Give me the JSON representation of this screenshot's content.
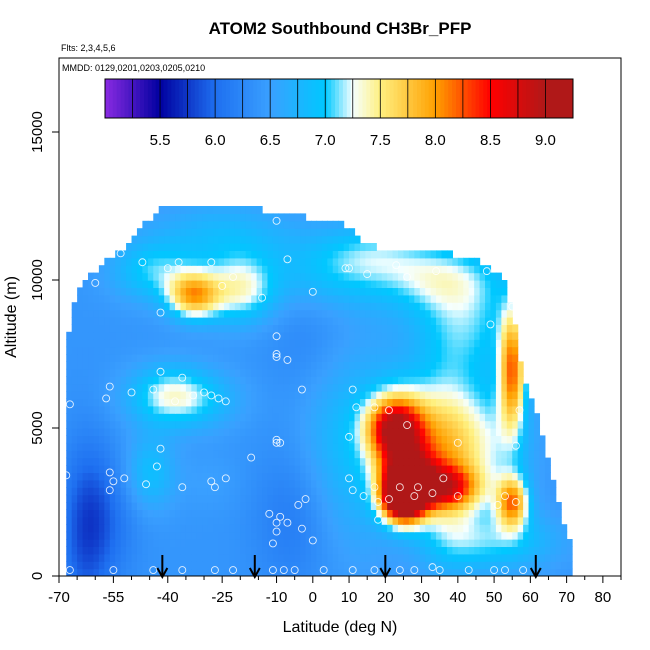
{
  "chart_data": {
    "type": "heatmap",
    "title": "ATOM2 Southbound CH3Br_PFP",
    "flights_label": "Flts: 2,3,4,5,6",
    "dates_label": "MMDD: 0129,0201,0203,0205,0210",
    "xlabel": "Latitude (deg N)",
    "ylabel": "Altitude (m)",
    "xlim": [
      -70,
      85
    ],
    "ylim": [
      0,
      17500
    ],
    "x_ticks": [
      -70,
      -55,
      -40,
      -25,
      -10,
      0,
      10,
      20,
      30,
      40,
      50,
      60,
      70,
      80
    ],
    "y_ticks": [
      0,
      5000,
      10000,
      15000
    ],
    "colorbar": {
      "min": 5.0,
      "max": 9.25,
      "ticks": [
        5.5,
        6.0,
        6.5,
        7.0,
        7.5,
        8.0,
        8.5,
        9.0
      ],
      "colors": {
        "c50": "#8a2be2",
        "c55": "#0000a0",
        "c60": "#1e6ff0",
        "c65": "#3aa0ff",
        "c70": "#00c8ff",
        "c72": "#f5ffff",
        "c75": "#fff080",
        "c80": "#ffa000",
        "c85": "#ff0000",
        "c90": "#b01818"
      }
    },
    "background_value": 6.4,
    "envelope": [
      [
        -68,
        0
      ],
      [
        72,
        0
      ],
      [
        72,
        900
      ],
      [
        70,
        1500
      ],
      [
        66,
        3500
      ],
      [
        62,
        5500
      ],
      [
        58,
        6600
      ],
      [
        55,
        9000
      ],
      [
        52,
        10200
      ],
      [
        45,
        10700
      ],
      [
        35,
        11000
      ],
      [
        25,
        11000
      ],
      [
        14,
        11200
      ],
      [
        11,
        11800
      ],
      [
        5,
        12000
      ],
      [
        -10,
        12300
      ],
      [
        -20,
        12500
      ],
      [
        -40,
        12600
      ],
      [
        -47,
        11800
      ],
      [
        -53,
        11000
      ],
      [
        -58,
        10500
      ],
      [
        -63,
        10000
      ],
      [
        -66,
        9200
      ],
      [
        -68,
        7500
      ],
      [
        -68,
        0
      ]
    ],
    "features": [
      {
        "x": -33,
        "y": 9500,
        "v": 7.8,
        "sx": 5,
        "sy": 550
      },
      {
        "x": -20,
        "y": 9700,
        "v": 7.3,
        "sx": 7,
        "sy": 800
      },
      {
        "x": -44,
        "y": 10300,
        "v": 7.0,
        "sx": 8,
        "sy": 700
      },
      {
        "x": -25,
        "y": 11500,
        "v": 6.8,
        "sx": 14,
        "sy": 800
      },
      {
        "x": 35,
        "y": 10100,
        "v": 7.1,
        "sx": 12,
        "sy": 800
      },
      {
        "x": -36,
        "y": 6000,
        "v": 7.1,
        "sx": 10,
        "sy": 700
      },
      {
        "x": 22,
        "y": 5000,
        "v": 8.1,
        "sx": 5,
        "sy": 700
      },
      {
        "x": 26,
        "y": 4700,
        "v": 7.6,
        "sx": 6,
        "sy": 1200
      },
      {
        "x": 37,
        "y": 4000,
        "v": 7.4,
        "sx": 6,
        "sy": 2000
      },
      {
        "x": 25,
        "y": 2600,
        "v": 9.1,
        "sx": 4,
        "sy": 550
      },
      {
        "x": 26,
        "y": 3300,
        "v": 8.4,
        "sx": 5,
        "sy": 700
      },
      {
        "x": 36,
        "y": 3000,
        "v": 7.8,
        "sx": 7,
        "sy": 500
      },
      {
        "x": 55,
        "y": 7000,
        "v": 8.0,
        "sx": 2.5,
        "sy": 1400
      },
      {
        "x": 55,
        "y": 2500,
        "v": 7.9,
        "sx": 3,
        "sy": 600
      },
      {
        "x": 48,
        "y": 4500,
        "v": 7.1,
        "sx": 8,
        "sy": 1500
      },
      {
        "x": 50,
        "y": 1200,
        "v": 7.0,
        "sx": 12,
        "sy": 700
      },
      {
        "x": 10,
        "y": 4600,
        "v": 6.9,
        "sx": 10,
        "sy": 2500
      },
      {
        "x": 42,
        "y": 8500,
        "v": 7.0,
        "sx": 10,
        "sy": 1200
      },
      {
        "x": -63,
        "y": 1500,
        "v": 5.9,
        "sx": 5,
        "sy": 2200
      },
      {
        "x": -56,
        "y": 2000,
        "v": 6.1,
        "sx": 6,
        "sy": 1600
      },
      {
        "x": -5,
        "y": 2000,
        "v": 6.1,
        "sx": 8,
        "sy": 1800
      },
      {
        "x": 0,
        "y": 8000,
        "v": 6.2,
        "sx": 9,
        "sy": 1800
      },
      {
        "x": -45,
        "y": 3500,
        "v": 6.9,
        "sx": 5,
        "sy": 900
      },
      {
        "x": -28,
        "y": 3200,
        "v": 6.5,
        "sx": 6,
        "sy": 700
      },
      {
        "x": -40,
        "y": 6300,
        "v": 6.7,
        "sx": 7,
        "sy": 700
      },
      {
        "x": 5,
        "y": 10300,
        "v": 6.9,
        "sx": 12,
        "sy": 900
      },
      {
        "x": 18,
        "y": 11000,
        "v": 6.8,
        "sx": 10,
        "sy": 700
      }
    ],
    "sample_points": [
      [
        -46,
        12300
      ],
      [
        -53,
        10900
      ],
      [
        -47,
        10600
      ],
      [
        -37,
        10600
      ],
      [
        -28,
        10600
      ],
      [
        -40,
        10400
      ],
      [
        -22,
        10100
      ],
      [
        -25,
        9800
      ],
      [
        -60,
        9900
      ],
      [
        -42,
        8900
      ],
      [
        -10,
        12000
      ],
      [
        -7,
        10700
      ],
      [
        -14,
        9400
      ],
      [
        0,
        9600
      ],
      [
        9,
        10400
      ],
      [
        10,
        10400
      ],
      [
        15,
        10200
      ],
      [
        23,
        10500
      ],
      [
        26,
        10100
      ],
      [
        34,
        10300
      ],
      [
        48,
        10300
      ],
      [
        58,
        9900
      ],
      [
        55,
        9100
      ],
      [
        49,
        8500
      ],
      [
        58,
        8000
      ],
      [
        -24,
        5900
      ],
      [
        -10,
        8100
      ],
      [
        -10,
        7500
      ],
      [
        -10,
        7400
      ],
      [
        -7,
        7300
      ],
      [
        -42,
        6900
      ],
      [
        -36,
        6700
      ],
      [
        -56,
        6400
      ],
      [
        -44,
        6300
      ],
      [
        -50,
        6200
      ],
      [
        -33,
        6100
      ],
      [
        -30,
        6200
      ],
      [
        -28,
        6100
      ],
      [
        -26,
        6000
      ],
      [
        -38,
        5900
      ],
      [
        -57,
        6000
      ],
      [
        -67,
        5800
      ],
      [
        -3,
        6300
      ],
      [
        11,
        6300
      ],
      [
        12,
        5700
      ],
      [
        17,
        5700
      ],
      [
        21,
        5600
      ],
      [
        57,
        5600
      ],
      [
        26,
        5100
      ],
      [
        40,
        4500
      ],
      [
        56,
        4400
      ],
      [
        -10,
        4600
      ],
      [
        -10,
        4500
      ],
      [
        -9,
        4500
      ],
      [
        -42,
        4300
      ],
      [
        -17,
        4000
      ],
      [
        -43,
        3700
      ],
      [
        -56,
        3500
      ],
      [
        -52,
        3300
      ],
      [
        -46,
        3100
      ],
      [
        -55,
        3200
      ],
      [
        -56,
        2900
      ],
      [
        -36,
        3000
      ],
      [
        -28,
        3200
      ],
      [
        -27,
        3000
      ],
      [
        -24,
        3300
      ],
      [
        -68,
        3400
      ],
      [
        10,
        3300
      ],
      [
        11,
        2900
      ],
      [
        17,
        3000
      ],
      [
        24,
        3000
      ],
      [
        36,
        3300
      ],
      [
        29,
        3000
      ],
      [
        33,
        2800
      ],
      [
        14,
        2700
      ],
      [
        18,
        2500
      ],
      [
        21,
        2600
      ],
      [
        40,
        2700
      ],
      [
        28,
        2700
      ],
      [
        53,
        2700
      ],
      [
        56,
        2500
      ],
      [
        51,
        2400
      ],
      [
        -4,
        2400
      ],
      [
        -2,
        2600
      ],
      [
        -12,
        2100
      ],
      [
        -9,
        2000
      ],
      [
        -7,
        1800
      ],
      [
        -10,
        1800
      ],
      [
        -3,
        1600
      ],
      [
        18,
        1900
      ],
      [
        -11,
        1100
      ],
      [
        0,
        1200
      ],
      [
        -10,
        1500
      ],
      [
        53,
        200
      ],
      [
        -67,
        200
      ],
      [
        -55,
        200
      ],
      [
        -44,
        200
      ],
      [
        -36,
        200
      ],
      [
        -27,
        200
      ],
      [
        -22,
        200
      ],
      [
        -11,
        200
      ],
      [
        -8,
        200
      ],
      [
        -5,
        200
      ],
      [
        3,
        200
      ],
      [
        11,
        200
      ],
      [
        17,
        200
      ],
      [
        24,
        200
      ],
      [
        28,
        200
      ],
      [
        35,
        200
      ],
      [
        43,
        200
      ],
      [
        50,
        200
      ],
      [
        58,
        200
      ],
      [
        33,
        300
      ],
      [
        10,
        4700
      ]
    ],
    "arrows_x": [
      -41.5,
      -16,
      20,
      61.5
    ]
  }
}
